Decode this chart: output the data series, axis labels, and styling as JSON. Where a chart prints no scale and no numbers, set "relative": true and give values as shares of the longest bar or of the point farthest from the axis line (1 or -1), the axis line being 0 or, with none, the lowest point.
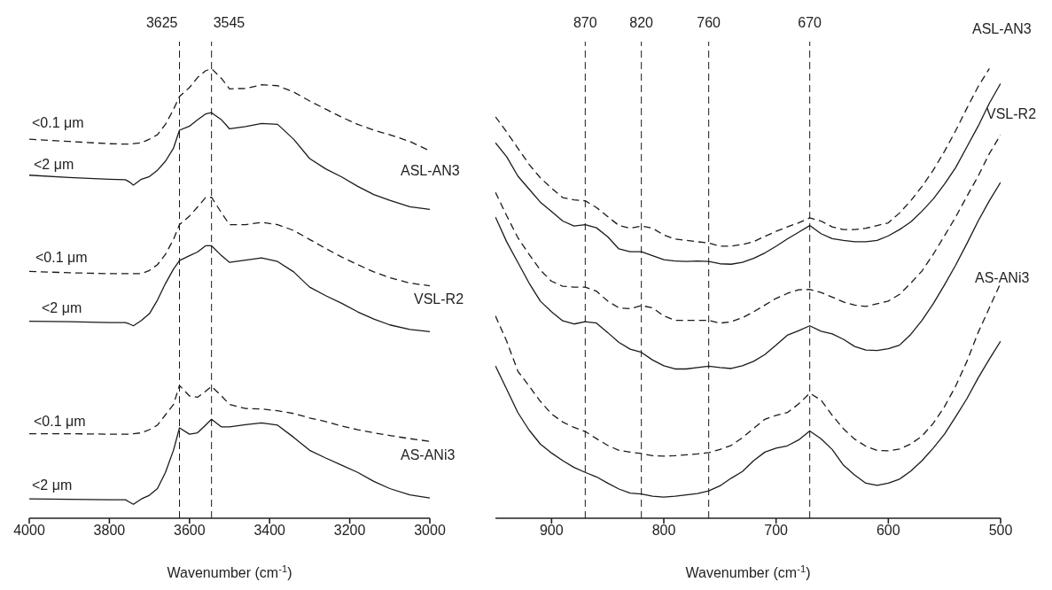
{
  "chart_data": [
    {
      "type": "line",
      "relative": true,
      "marker": "none",
      "xlabel": "Wavenumber (cm$^{-1}$)",
      "xlim": [
        4000,
        3000
      ],
      "xticks": [
        4000,
        3800,
        3600,
        3400,
        3200,
        3000
      ],
      "x": [
        4000,
        3900,
        3800,
        3760,
        3750,
        3740,
        3720,
        3700,
        3680,
        3660,
        3640,
        3625,
        3600,
        3580,
        3560,
        3545,
        3520,
        3500,
        3460,
        3420,
        3380,
        3340,
        3300,
        3260,
        3220,
        3180,
        3140,
        3100,
        3050,
        3000
      ],
      "series": [
        {
          "color": "#1a1a1a",
          "line_style": "dashed",
          "values": [
            0.843,
            0.838,
            0.833,
            0.832,
            0.832,
            0.833,
            0.835,
            0.843,
            0.853,
            0.876,
            0.909,
            0.938,
            0.958,
            0.98,
            0.995,
            1,
            0.978,
            0.955,
            0.956,
            0.964,
            0.962,
            0.948,
            0.928,
            0.91,
            0.892,
            0.876,
            0.863,
            0.853,
            0.838,
            0.817
          ]
        },
        {
          "color": "#1a1a1a",
          "line_style": "solid",
          "values": [
            0.763,
            0.758,
            0.754,
            0.753,
            0.748,
            0.741,
            0.754,
            0.76,
            0.774,
            0.794,
            0.823,
            0.863,
            0.872,
            0.886,
            0.899,
            0.902,
            0.886,
            0.866,
            0.871,
            0.878,
            0.876,
            0.843,
            0.8,
            0.777,
            0.759,
            0.738,
            0.72,
            0.707,
            0.693,
            0.687
          ]
        },
        {
          "color": "#1a1a1a",
          "line_style": "dashed",
          "values": [
            0.549,
            0.546,
            0.544,
            0.544,
            0.544,
            0.544,
            0.544,
            0.551,
            0.564,
            0.587,
            0.62,
            0.653,
            0.672,
            0.692,
            0.713,
            0.714,
            0.679,
            0.653,
            0.653,
            0.658,
            0.653,
            0.64,
            0.62,
            0.6,
            0.581,
            0.564,
            0.548,
            0.535,
            0.523,
            0.517
          ]
        },
        {
          "color": "#1a1a1a",
          "line_style": "solid",
          "values": [
            0.438,
            0.437,
            0.435,
            0.435,
            0.432,
            0.428,
            0.44,
            0.455,
            0.485,
            0.522,
            0.554,
            0.573,
            0.584,
            0.592,
            0.606,
            0.606,
            0.584,
            0.569,
            0.574,
            0.579,
            0.571,
            0.548,
            0.514,
            0.495,
            0.478,
            0.459,
            0.443,
            0.43,
            0.42,
            0.415
          ]
        },
        {
          "color": "#1a1a1a",
          "line_style": "dashed",
          "values": [
            0.188,
            0.188,
            0.187,
            0.187,
            0.187,
            0.188,
            0.19,
            0.197,
            0.207,
            0.23,
            0.253,
            0.295,
            0.272,
            0.269,
            0.282,
            0.293,
            0.272,
            0.253,
            0.244,
            0.243,
            0.239,
            0.233,
            0.223,
            0.215,
            0.205,
            0.197,
            0.19,
            0.184,
            0.177,
            0.171
          ]
        },
        {
          "color": "#1a1a1a",
          "line_style": "solid",
          "values": [
            0.043,
            0.042,
            0.041,
            0.041,
            0.036,
            0.031,
            0.043,
            0.051,
            0.066,
            0.102,
            0.151,
            0.201,
            0.187,
            0.19,
            0.207,
            0.22,
            0.203,
            0.203,
            0.208,
            0.212,
            0.207,
            0.18,
            0.151,
            0.134,
            0.118,
            0.102,
            0.082,
            0.066,
            0.052,
            0.045
          ]
        }
      ],
      "ref_lines": [
        {
          "axis": "x",
          "value": 3625,
          "label": "3625",
          "line_style": "dashed",
          "color": "#1a1a1a"
        },
        {
          "axis": "x",
          "value": 3545,
          "label": "3545",
          "line_style": "dashed",
          "color": "#1a1a1a"
        }
      ],
      "annotations": [
        "<0.1 μm",
        "<2 μm",
        "ASL-AN3",
        "<0.1 μm",
        "<2 μm",
        "VSL-R2",
        "<0.1 μm",
        "<2 μm",
        "AS-ANi3"
      ]
    },
    {
      "type": "line",
      "relative": true,
      "marker": "none",
      "xlabel": "Wavenumber (cm$^{-1}$)",
      "xlim": [
        950,
        500
      ],
      "xticks": [
        900,
        800,
        700,
        600,
        500
      ],
      "x": [
        950,
        940,
        930,
        920,
        910,
        900,
        890,
        880,
        870,
        860,
        850,
        840,
        830,
        820,
        810,
        800,
        790,
        780,
        770,
        760,
        750,
        740,
        730,
        720,
        710,
        700,
        690,
        680,
        670,
        660,
        650,
        640,
        630,
        620,
        610,
        600,
        590,
        580,
        570,
        560,
        550,
        540,
        530,
        520,
        510,
        500
      ],
      "series": [
        {
          "color": "#1a1a1a",
          "line_style": "dashed",
          "values": [
            0.893,
            0.859,
            0.823,
            0.787,
            0.757,
            0.734,
            0.713,
            0.708,
            0.706,
            0.691,
            0.671,
            0.651,
            0.645,
            0.65,
            0.645,
            0.63,
            0.621,
            0.618,
            0.615,
            0.612,
            0.605,
            0.605,
            0.609,
            0.615,
            0.627,
            0.638,
            0.648,
            0.657,
            0.668,
            0.661,
            0.648,
            0.642,
            0.642,
            0.645,
            0.651,
            0.657,
            0.679,
            0.706,
            0.738,
            0.774,
            0.816,
            0.862,
            0.912,
            0.96,
            1,
            null
          ]
        },
        {
          "color": "#1a1a1a",
          "line_style": "solid",
          "values": [
            0.835,
            0.804,
            0.761,
            0.732,
            0.703,
            0.682,
            0.661,
            0.65,
            0.653,
            0.646,
            0.626,
            0.599,
            0.593,
            0.593,
            0.584,
            0.575,
            0.572,
            0.571,
            0.572,
            0.571,
            0.566,
            0.565,
            0.569,
            0.578,
            0.59,
            0.605,
            0.621,
            0.636,
            0.651,
            0.633,
            0.622,
            0.618,
            0.615,
            0.615,
            0.618,
            0.628,
            0.642,
            0.659,
            0.683,
            0.71,
            0.743,
            0.78,
            0.826,
            0.872,
            0.923,
            0.967
          ]
        },
        {
          "color": "#1a1a1a",
          "line_style": "dashed",
          "values": [
            0.725,
            0.673,
            0.624,
            0.587,
            0.552,
            0.527,
            0.516,
            0.514,
            0.514,
            0.505,
            0.483,
            0.468,
            0.466,
            0.473,
            0.468,
            0.45,
            0.44,
            0.44,
            0.44,
            0.44,
            0.434,
            0.437,
            0.446,
            0.459,
            0.474,
            0.489,
            0.5,
            0.508,
            0.509,
            0.502,
            0.492,
            0.481,
            0.474,
            0.471,
            0.477,
            0.483,
            0.498,
            0.523,
            0.55,
            0.587,
            0.628,
            0.67,
            0.716,
            0.761,
            0.811,
            0.853
          ]
        },
        {
          "color": "#1a1a1a",
          "line_style": "solid",
          "values": [
            0.67,
            0.615,
            0.569,
            0.523,
            0.483,
            0.459,
            0.439,
            0.432,
            0.437,
            0.434,
            0.413,
            0.391,
            0.376,
            0.369,
            0.352,
            0.339,
            0.332,
            0.332,
            0.335,
            0.338,
            0.335,
            0.333,
            0.339,
            0.349,
            0.364,
            0.385,
            0.407,
            0.417,
            0.428,
            0.416,
            0.41,
            0.398,
            0.382,
            0.374,
            0.373,
            0.377,
            0.385,
            0.409,
            0.44,
            0.477,
            0.519,
            0.563,
            0.611,
            0.661,
            0.706,
            0.747
          ]
        },
        {
          "color": "#1a1a1a",
          "line_style": "dashed",
          "values": [
            0.45,
            0.394,
            0.327,
            0.294,
            0.26,
            0.232,
            0.214,
            0.202,
            0.193,
            0.177,
            0.162,
            0.151,
            0.147,
            0.144,
            0.139,
            0.138,
            0.139,
            0.141,
            0.143,
            0.146,
            0.153,
            0.162,
            0.179,
            0.2,
            0.22,
            0.229,
            0.235,
            0.254,
            0.278,
            0.263,
            0.229,
            0.199,
            0.176,
            0.16,
            0.151,
            0.15,
            0.154,
            0.165,
            0.183,
            0.211,
            0.248,
            0.294,
            0.349,
            0.413,
            0.468,
            0.523
          ]
        },
        {
          "color": "#1a1a1a",
          "line_style": "solid",
          "values": [
            0.339,
            0.287,
            0.235,
            0.196,
            0.165,
            0.145,
            0.128,
            0.113,
            0.102,
            0.092,
            0.078,
            0.065,
            0.056,
            0.054,
            0.049,
            0.047,
            0.049,
            0.052,
            0.055,
            0.061,
            0.072,
            0.089,
            0.104,
            0.128,
            0.147,
            0.156,
            0.161,
            0.174,
            0.194,
            0.177,
            0.153,
            0.118,
            0.096,
            0.078,
            0.073,
            0.078,
            0.087,
            0.105,
            0.128,
            0.156,
            0.187,
            0.226,
            0.266,
            0.312,
            0.354,
            0.394
          ]
        }
      ],
      "ref_lines": [
        {
          "axis": "x",
          "value": 870,
          "label": "870",
          "line_style": "dashed",
          "color": "#1a1a1a"
        },
        {
          "axis": "x",
          "value": 820,
          "label": "820",
          "line_style": "dashed",
          "color": "#1a1a1a"
        },
        {
          "axis": "x",
          "value": 760,
          "label": "760",
          "line_style": "dashed",
          "color": "#1a1a1a"
        },
        {
          "axis": "x",
          "value": 670,
          "label": "670",
          "line_style": "dashed",
          "color": "#1a1a1a"
        }
      ],
      "annotations": [
        "ASL-AN3",
        "VSL-R2",
        "AS-ANi3"
      ]
    }
  ]
}
